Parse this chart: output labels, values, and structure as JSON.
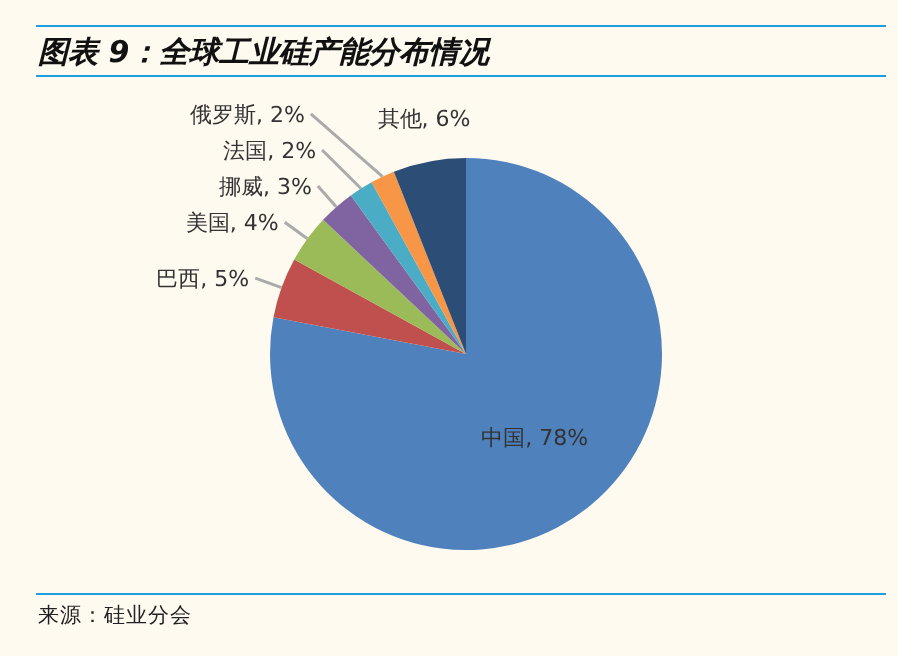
{
  "chart_data": {
    "type": "pie",
    "title": "图表 9：全球工业硅产能分布情况",
    "categories": [
      "中国",
      "巴西",
      "美国",
      "挪威",
      "法国",
      "俄罗斯",
      "其他"
    ],
    "values": [
      78,
      5,
      4,
      3,
      2,
      2,
      6
    ],
    "colors": [
      "#4f81bd",
      "#c0504d",
      "#9bbb59",
      "#8064a2",
      "#4bacc6",
      "#f79646",
      "#2c4d75"
    ],
    "value_labels": [
      ", 78%",
      ", 5%",
      ", 4%",
      ", 3%",
      ", 2%",
      ", 2%",
      ", 6%"
    ],
    "annotations": [
      "来源：硅业分会"
    ]
  }
}
